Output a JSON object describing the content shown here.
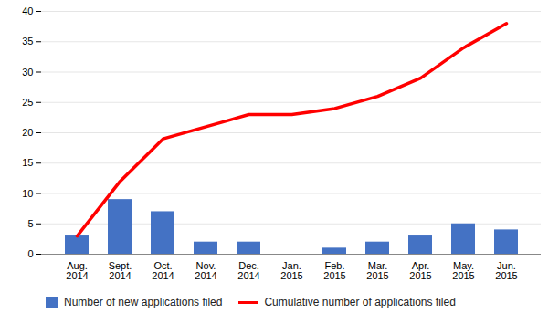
{
  "chart_data": {
    "type": "bar",
    "categories": [
      "Aug.\n2014",
      "Sept.\n2014",
      "Oct.\n2014",
      "Nov.\n2014",
      "Dec.\n2014",
      "Jan.\n2015",
      "Feb.\n2015",
      "Mar.\n2015",
      "Apr.\n2015",
      "May.\n2015",
      "Jun.\n2015"
    ],
    "series": [
      {
        "name": "Number of new applications filed",
        "type": "bar",
        "color": "#4472C4",
        "values": [
          3,
          9,
          7,
          2,
          2,
          0,
          1,
          2,
          3,
          5,
          4
        ]
      },
      {
        "name": "Cumulative number of applications filed",
        "type": "line",
        "color": "#FF0000",
        "values": [
          3,
          12,
          19,
          21,
          23,
          23,
          24,
          26,
          29,
          34,
          38
        ]
      }
    ],
    "ylim": [
      0,
      40
    ],
    "yticks": [
      0,
      5,
      10,
      15,
      20,
      25,
      30,
      35,
      40
    ],
    "grid": true,
    "legend": "bottom"
  }
}
